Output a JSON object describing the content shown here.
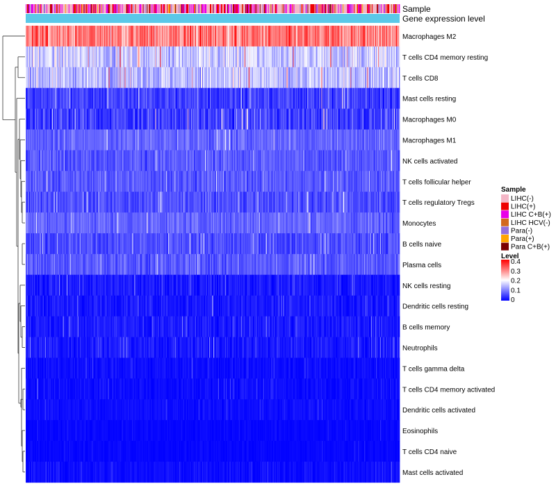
{
  "chart_data": {
    "type": "heatmap",
    "annotation_tracks": [
      {
        "label": "Sample",
        "kind": "categorical"
      },
      {
        "label": "Gene expression level",
        "kind": "continuous",
        "color": "#5bc8e8"
      }
    ],
    "rows": [
      {
        "label": "Macrophages M2",
        "mean": 0.3,
        "spread": 0.09
      },
      {
        "label": "T cells CD4 memory resting",
        "mean": 0.16,
        "spread": 0.07
      },
      {
        "label": "T cells CD8",
        "mean": 0.15,
        "spread": 0.07
      },
      {
        "label": "Mast cells resting",
        "mean": 0.05,
        "spread": 0.05
      },
      {
        "label": "Macrophages M0",
        "mean": 0.05,
        "spread": 0.06
      },
      {
        "label": "Macrophages M1",
        "mean": 0.08,
        "spread": 0.04
      },
      {
        "label": "NK cells activated",
        "mean": 0.07,
        "spread": 0.04
      },
      {
        "label": "T cells follicular helper",
        "mean": 0.07,
        "spread": 0.04
      },
      {
        "label": "T cells regulatory  Tregs",
        "mean": 0.06,
        "spread": 0.04
      },
      {
        "label": "Monocytes",
        "mean": 0.08,
        "spread": 0.04
      },
      {
        "label": "B cells naive",
        "mean": 0.06,
        "spread": 0.04
      },
      {
        "label": "Plasma cells",
        "mean": 0.07,
        "spread": 0.04
      },
      {
        "label": "NK cells resting",
        "mean": 0.02,
        "spread": 0.03
      },
      {
        "label": "Dendritic cells resting",
        "mean": 0.02,
        "spread": 0.03
      },
      {
        "label": "B cells memory",
        "mean": 0.02,
        "spread": 0.03
      },
      {
        "label": "Neutrophils",
        "mean": 0.02,
        "spread": 0.03
      },
      {
        "label": "T cells gamma delta",
        "mean": 0.01,
        "spread": 0.02
      },
      {
        "label": "T cells CD4 memory activated",
        "mean": 0.01,
        "spread": 0.02
      },
      {
        "label": "Dendritic cells activated",
        "mean": 0.01,
        "spread": 0.015
      },
      {
        "label": "Eosinophils",
        "mean": 0.005,
        "spread": 0.01
      },
      {
        "label": "T cells CD4 naive",
        "mean": 0.005,
        "spread": 0.01
      },
      {
        "label": "Mast cells activated",
        "mean": 0.01,
        "spread": 0.02
      }
    ],
    "n_samples": 540,
    "legend_sample": {
      "title": "Sample",
      "entries": [
        {
          "label": "LIHC(-)",
          "color": "#f4b6c6"
        },
        {
          "label": "LIHC(+)",
          "color": "#ee0000"
        },
        {
          "label": "LIHC C+B(+)",
          "color": "#e800e8"
        },
        {
          "label": "LIHC HCV(-)",
          "color": "#d2691e"
        },
        {
          "label": "Para(-)",
          "color": "#9370db"
        },
        {
          "label": "Para(+)",
          "color": "#ffa500"
        },
        {
          "label": "Para C+B(+)",
          "color": "#7a0000"
        }
      ]
    },
    "legend_level": {
      "title": "Level",
      "ticks": [
        "0.4",
        "0.3",
        "0.2",
        "0.1",
        "0"
      ],
      "tick_values": [
        0.4,
        0.3,
        0.2,
        0.1,
        0
      ],
      "range": [
        0,
        0.4
      ],
      "colors": [
        "#0000ff",
        "#ffffff",
        "#ff0000"
      ]
    },
    "dendrogram": "row hierarchical clustering (left)"
  }
}
